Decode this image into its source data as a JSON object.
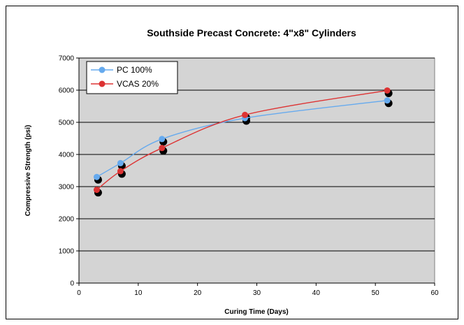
{
  "chart_data": {
    "type": "line",
    "title": "Southside Precast Concrete:  4\"x8\" Cylinders",
    "xlabel": "Curing Time (Days)",
    "ylabel": "Compressive  Strength  (psi)",
    "xlim": [
      0,
      60
    ],
    "ylim": [
      0,
      7000
    ],
    "x_ticks": [
      0,
      10,
      20,
      30,
      40,
      50,
      60
    ],
    "y_ticks": [
      0,
      1000,
      2000,
      3000,
      4000,
      5000,
      6000,
      7000
    ],
    "grid": "horizontal",
    "legend_position": "top-left",
    "plot_background": "#d4d4d4",
    "series": [
      {
        "name": "PC 100%",
        "color": "#66aaee",
        "x": [
          3,
          7,
          14,
          28,
          52
        ],
        "y": [
          3300,
          3730,
          4480,
          5130,
          5680
        ]
      },
      {
        "name": "VCAS 20%",
        "color": "#dd3333",
        "x": [
          3,
          7,
          14,
          28,
          52
        ],
        "y": [
          2900,
          3480,
          4200,
          5230,
          5990
        ]
      }
    ]
  }
}
